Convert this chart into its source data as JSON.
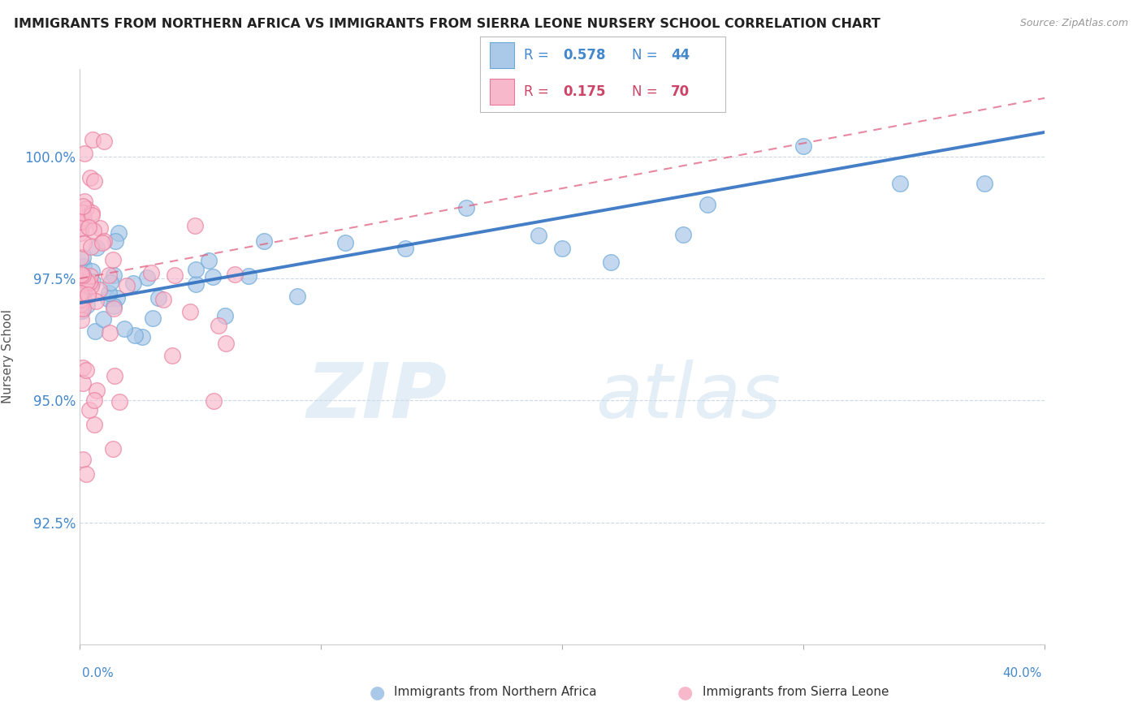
{
  "title": "IMMIGRANTS FROM NORTHERN AFRICA VS IMMIGRANTS FROM SIERRA LEONE NURSERY SCHOOL CORRELATION CHART",
  "source_text": "Source: ZipAtlas.com",
  "ylabel": "Nursery School",
  "xmin": 0.0,
  "xmax": 40.0,
  "ymin": 90.0,
  "ymax": 101.8,
  "yticks": [
    92.5,
    95.0,
    97.5,
    100.0
  ],
  "ytick_labels": [
    "92.5%",
    "95.0%",
    "97.5%",
    "100.0%"
  ],
  "series1_label": "Immigrants from Northern Africa",
  "series1_R": 0.578,
  "series1_N": 44,
  "series1_color": "#aac8e8",
  "series1_edge": "#6aa8d8",
  "series2_label": "Immigrants from Sierra Leone",
  "series2_R": 0.175,
  "series2_N": 70,
  "series2_color": "#f8b8cc",
  "series2_edge": "#e87898",
  "trendline1_color": "#3070c0",
  "trendline2_color": "#e06080",
  "legend_R1_color": "#4488cc",
  "legend_R2_color": "#cc4466",
  "watermark_zip_color": "#cce0f0",
  "watermark_atlas_color": "#cce0f0",
  "background_color": "#ffffff",
  "grid_color": "#c0d0e0",
  "axis_color": "#4488cc",
  "title_color": "#222222"
}
